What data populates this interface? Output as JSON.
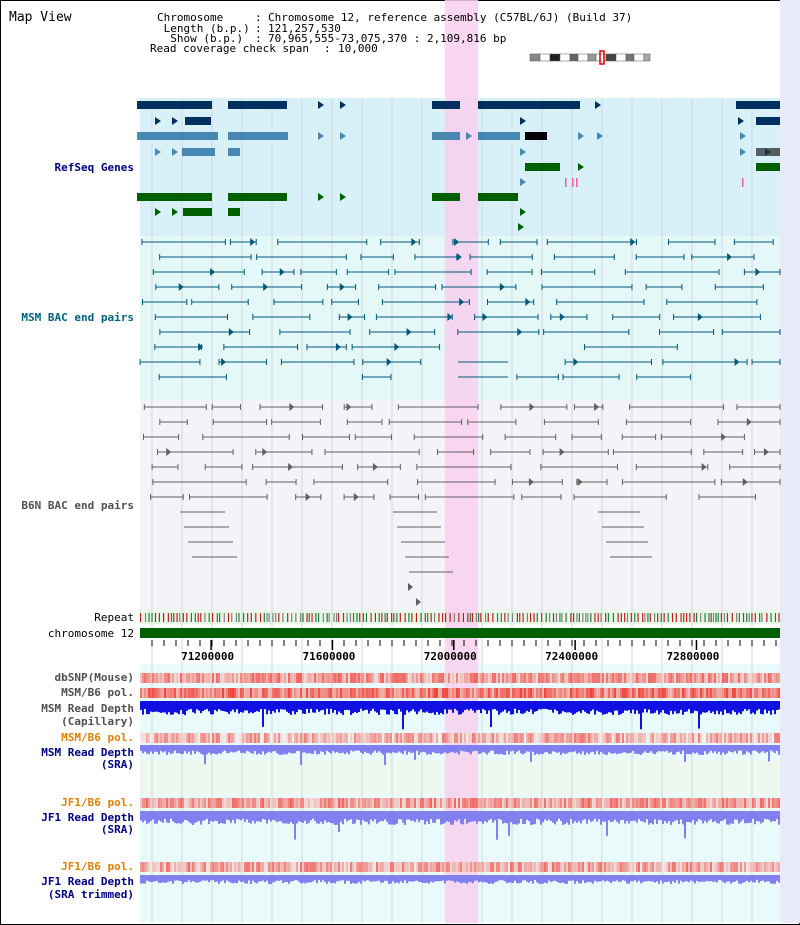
{
  "view_title": "Map View",
  "info": {
    "chromosome_key": "Chromosome",
    "chromosome_value": "Chromosome 12, reference assembly (C57BL/6J) (Build 37)",
    "length_key": " Length (b.p.)",
    "length_value": "121,257,530",
    "show_key": "  Show (b.p.)",
    "show_value": "70,965,555-73,075,370 : 2,109,816 bp",
    "coverage_key": "Read coverage check span",
    "coverage_value": "10,000"
  },
  "tracks": {
    "refseq": "RefSeq Genes",
    "msm_bac": "MSM BAC end pairs",
    "b6n_bac": "B6N BAC end pairs",
    "repeat": "Repeat",
    "chromosome": "chromosome 12",
    "dbsnp": "dbSNP(Mouse)",
    "msm_b6_pol_1": "MSM/B6 pol.",
    "msm_read_depth_cap_1": "MSM Read Depth",
    "msm_read_depth_cap_2": "(Capillary)",
    "msm_b6_pol_2": "MSM/B6 pol.",
    "msm_read_depth_sra_1": "MSM Read Depth",
    "msm_read_depth_sra_2": "(SRA)",
    "jf1_b6_pol_1": "JF1/B6 pol.",
    "jf1_read_depth_sra_1": "JF1 Read Depth",
    "jf1_read_depth_sra_2": "(SRA)",
    "jf1_b6_pol_2": "JF1/B6 pol.",
    "jf1_read_depth_trim_1": "JF1 Read Depth",
    "jf1_read_depth_trim_2": "(SRA trimmed)"
  },
  "axis": {
    "range_bp": [
      70965555,
      73075370
    ],
    "ticks": [
      "71200000",
      "71600000",
      "72000000",
      "72400000",
      "72800000"
    ]
  },
  "highlight_bp": [
    71970000,
    72080000
  ],
  "colors": {
    "refseq_bg": "#d8f0f8",
    "msm_bg": "#e4f8f8",
    "b6n_bg": "#f4f4f8",
    "highlight": "#f8d0f0",
    "gene_dark": "#003060",
    "gene_mid": "#4888b0",
    "gene_green": "#006000",
    "msm_line": "#00587a",
    "b6n_line": "#606060",
    "chrom_bar": "#006000",
    "depth_blue": "#1010e0",
    "depth_light": "#8080f0",
    "pol_red": "#f02020"
  }
}
